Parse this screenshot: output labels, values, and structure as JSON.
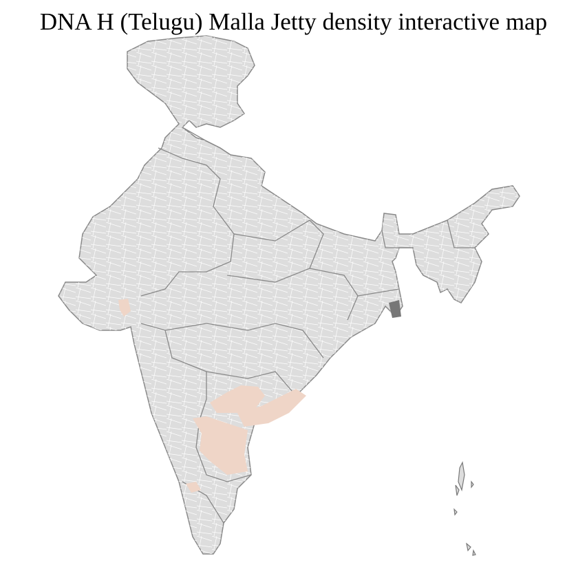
{
  "title": "DNA H (Telugu) Malla Jetty density interactive map",
  "map": {
    "region": "India",
    "base_color": "#dddddd",
    "border_color": "#888888",
    "district_line_color": "#ffffff",
    "highlight_color": "#efd5c7",
    "highlighted_regions": [
      "Telangana / northern Andhra Pradesh",
      "Coastal Andhra Pradesh",
      "Rayalaseema / southern Andhra Pradesh",
      "South Karnataka district",
      "Gujarat district"
    ]
  }
}
